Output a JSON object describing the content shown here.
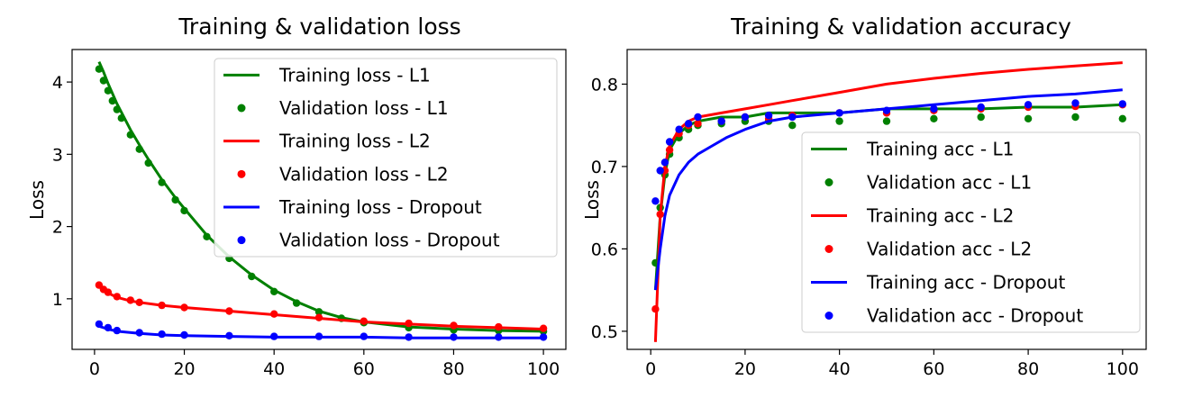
{
  "colors": {
    "l1": "#008000",
    "l2": "#ff0000",
    "dropout": "#0000ff"
  },
  "chart_data": [
    {
      "type": "line",
      "title": "Training & validation loss",
      "xlabel": "",
      "ylabel": "Loss",
      "xlim": [
        -5,
        105
      ],
      "ylim": [
        0.3,
        4.45
      ],
      "xticks": [
        0,
        20,
        40,
        60,
        80,
        100
      ],
      "yticks": [
        1,
        2,
        3,
        4
      ],
      "legend_position": "upper-right",
      "legend": [
        "Training loss - L1",
        "Validation loss - L1",
        "Training loss - L2",
        "Validation loss - L2",
        "Training loss - Dropout",
        "Validation loss - Dropout"
      ],
      "series": [
        {
          "name": "Training loss - L1",
          "style": "line",
          "color_key": "l1",
          "x": [
            1,
            2,
            3,
            4,
            5,
            6,
            8,
            10,
            12,
            15,
            18,
            20,
            25,
            30,
            35,
            40,
            45,
            50,
            55,
            60,
            70,
            80,
            90,
            100
          ],
          "y": [
            4.28,
            4.14,
            3.98,
            3.84,
            3.7,
            3.58,
            3.34,
            3.13,
            2.93,
            2.65,
            2.4,
            2.25,
            1.88,
            1.58,
            1.33,
            1.12,
            0.96,
            0.83,
            0.74,
            0.68,
            0.61,
            0.58,
            0.56,
            0.55
          ]
        },
        {
          "name": "Validation loss - L1",
          "style": "markers",
          "color_key": "l1",
          "x": [
            1,
            2,
            3,
            4,
            5,
            6,
            8,
            10,
            12,
            15,
            18,
            20,
            25,
            30,
            35,
            40,
            45,
            50,
            55,
            60,
            70,
            80,
            90,
            100
          ],
          "y": [
            4.18,
            4.02,
            3.88,
            3.74,
            3.62,
            3.5,
            3.27,
            3.07,
            2.88,
            2.61,
            2.37,
            2.22,
            1.86,
            1.56,
            1.31,
            1.1,
            0.94,
            0.82,
            0.73,
            0.67,
            0.6,
            0.57,
            0.56,
            0.55
          ]
        },
        {
          "name": "Training loss - L2",
          "style": "line",
          "color_key": "l2",
          "x": [
            1,
            2,
            3,
            5,
            8,
            10,
            15,
            20,
            30,
            40,
            50,
            60,
            70,
            80,
            90,
            100
          ],
          "y": [
            1.17,
            1.12,
            1.08,
            1.02,
            0.97,
            0.95,
            0.91,
            0.88,
            0.83,
            0.78,
            0.73,
            0.68,
            0.65,
            0.62,
            0.6,
            0.58
          ]
        },
        {
          "name": "Validation loss - L2",
          "style": "markers",
          "color_key": "l2",
          "x": [
            1,
            2,
            3,
            5,
            8,
            10,
            15,
            20,
            30,
            40,
            50,
            60,
            70,
            80,
            90,
            100
          ],
          "y": [
            1.19,
            1.13,
            1.09,
            1.03,
            0.98,
            0.95,
            0.91,
            0.88,
            0.83,
            0.79,
            0.74,
            0.69,
            0.66,
            0.63,
            0.61,
            0.59
          ]
        },
        {
          "name": "Training loss - Dropout",
          "style": "line",
          "color_key": "dropout",
          "x": [
            1,
            3,
            5,
            10,
            15,
            20,
            30,
            40,
            50,
            60,
            70,
            80,
            90,
            100
          ],
          "y": [
            0.62,
            0.58,
            0.55,
            0.52,
            0.5,
            0.49,
            0.48,
            0.47,
            0.47,
            0.47,
            0.46,
            0.46,
            0.46,
            0.46
          ]
        },
        {
          "name": "Validation loss - Dropout",
          "style": "markers",
          "color_key": "dropout",
          "x": [
            1,
            3,
            5,
            10,
            15,
            20,
            30,
            40,
            50,
            60,
            70,
            80,
            90,
            100
          ],
          "y": [
            0.65,
            0.6,
            0.56,
            0.53,
            0.51,
            0.5,
            0.49,
            0.48,
            0.48,
            0.48,
            0.47,
            0.47,
            0.47,
            0.47
          ]
        }
      ]
    },
    {
      "type": "line",
      "title": "Training & validation accuracy",
      "xlabel": "",
      "ylabel": "Loss",
      "xlim": [
        -5,
        105
      ],
      "ylim": [
        0.478,
        0.842
      ],
      "xticks": [
        0,
        20,
        40,
        60,
        80,
        100
      ],
      "yticks": [
        0.5,
        0.6,
        0.7,
        0.8
      ],
      "legend_position": "lower-right",
      "legend": [
        "Training acc - L1",
        "Validation acc - L1",
        "Training acc - L2",
        "Validation acc - L2",
        "Training acc - Dropout",
        "Validation acc - Dropout"
      ],
      "series": [
        {
          "name": "Training acc - L1",
          "style": "line",
          "color_key": "l1",
          "x": [
            1,
            2,
            3,
            4,
            6,
            8,
            10,
            15,
            20,
            25,
            30,
            40,
            50,
            60,
            70,
            80,
            90,
            100
          ],
          "y": [
            0.55,
            0.64,
            0.69,
            0.72,
            0.74,
            0.75,
            0.755,
            0.76,
            0.76,
            0.765,
            0.765,
            0.765,
            0.77,
            0.77,
            0.77,
            0.772,
            0.772,
            0.775
          ]
        },
        {
          "name": "Validation acc - L1",
          "style": "markers",
          "color_key": "l1",
          "x": [
            1,
            2,
            3,
            4,
            6,
            8,
            10,
            15,
            20,
            25,
            30,
            40,
            50,
            60,
            70,
            80,
            90,
            100
          ],
          "y": [
            0.583,
            0.65,
            0.69,
            0.715,
            0.735,
            0.745,
            0.75,
            0.752,
            0.755,
            0.755,
            0.75,
            0.755,
            0.755,
            0.758,
            0.76,
            0.758,
            0.76,
            0.758
          ]
        },
        {
          "name": "Training acc - L2",
          "style": "line",
          "color_key": "l2",
          "x": [
            1,
            2,
            3,
            4,
            6,
            8,
            10,
            15,
            20,
            25,
            30,
            40,
            50,
            60,
            70,
            80,
            90,
            100
          ],
          "y": [
            0.487,
            0.64,
            0.7,
            0.725,
            0.745,
            0.755,
            0.76,
            0.765,
            0.77,
            0.775,
            0.78,
            0.79,
            0.8,
            0.807,
            0.813,
            0.818,
            0.822,
            0.826
          ]
        },
        {
          "name": "Validation acc - L2",
          "style": "markers",
          "color_key": "l2",
          "x": [
            1,
            2,
            3,
            4,
            6,
            8,
            10,
            15,
            20,
            25,
            30,
            40,
            50,
            60,
            70,
            80,
            90,
            100
          ],
          "y": [
            0.527,
            0.642,
            0.695,
            0.72,
            0.74,
            0.75,
            0.752,
            0.755,
            0.76,
            0.758,
            0.762,
            0.765,
            0.765,
            0.768,
            0.77,
            0.772,
            0.773,
            0.775
          ]
        },
        {
          "name": "Training acc - Dropout",
          "style": "line",
          "color_key": "dropout",
          "x": [
            1,
            2,
            3,
            4,
            6,
            8,
            10,
            13,
            16,
            20,
            25,
            30,
            40,
            50,
            60,
            70,
            80,
            90,
            100
          ],
          "y": [
            0.55,
            0.6,
            0.64,
            0.665,
            0.69,
            0.705,
            0.715,
            0.725,
            0.735,
            0.745,
            0.755,
            0.76,
            0.765,
            0.77,
            0.775,
            0.78,
            0.785,
            0.788,
            0.793
          ]
        },
        {
          "name": "Validation acc - Dropout",
          "style": "markers",
          "color_key": "dropout",
          "x": [
            1,
            2,
            3,
            4,
            6,
            8,
            10,
            15,
            20,
            25,
            30,
            40,
            50,
            60,
            70,
            80,
            90,
            100
          ],
          "y": [
            0.658,
            0.695,
            0.705,
            0.73,
            0.745,
            0.752,
            0.76,
            0.755,
            0.76,
            0.762,
            0.76,
            0.765,
            0.768,
            0.77,
            0.772,
            0.775,
            0.777,
            0.776
          ]
        }
      ]
    }
  ]
}
